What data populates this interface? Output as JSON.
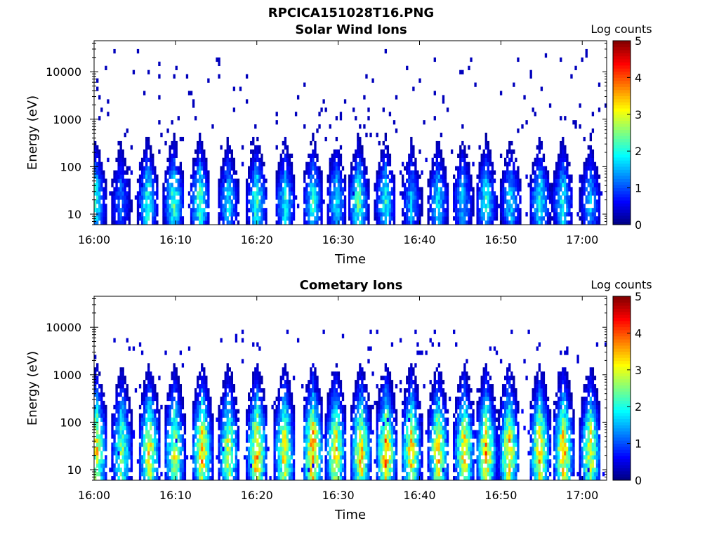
{
  "figure_title": "RPCICA151028T16.PNG",
  "colors": {
    "colormap": [
      "#00007f",
      "#0000ff",
      "#007fff",
      "#00ffff",
      "#7fff7f",
      "#ffff00",
      "#ff7f00",
      "#ff0000",
      "#7f0000"
    ]
  },
  "chart_data": [
    {
      "type": "heatmap",
      "title": "Solar Wind Ions",
      "xlabel": "Time",
      "ylabel": "Energy (eV)",
      "y_scale": "log",
      "ylim": [
        6,
        45000
      ],
      "xlim": [
        "16:00",
        "17:03"
      ],
      "x_ticks": [
        "16:00",
        "16:10",
        "16:20",
        "16:30",
        "16:40",
        "16:50",
        "17:00"
      ],
      "y_ticks": [
        "10",
        "100",
        "1000",
        "10000"
      ],
      "colorbar": {
        "label": "Log counts",
        "range": [
          0,
          5
        ],
        "ticks": [
          "0",
          "1",
          "2",
          "3",
          "4",
          "5"
        ]
      },
      "sweep_minutes": [
        0.2,
        3.3,
        6.6,
        9.8,
        13.0,
        16.5,
        20.0,
        23.5,
        26.9,
        29.8,
        32.5,
        35.8,
        39.0,
        42.3,
        45.3,
        48.2,
        51.2,
        54.8,
        57.6,
        61.0
      ],
      "peak_log_counts": [
        2.0,
        1.2,
        2.1,
        2.2,
        2.3,
        1.8,
        2.2,
        1.9,
        2.0,
        1.8,
        2.3,
        2.0,
        1.5,
        1.8,
        1.6,
        2.0,
        1.7,
        2.0,
        1.9,
        1.6
      ],
      "background_log_counts": 0.3,
      "background_energy_range": [
        150,
        28000
      ]
    },
    {
      "type": "heatmap",
      "title": "Cometary Ions",
      "xlabel": "Time",
      "ylabel": "Energy (eV)",
      "y_scale": "log",
      "ylim": [
        6,
        45000
      ],
      "xlim": [
        "16:00",
        "17:03"
      ],
      "x_ticks": [
        "16:00",
        "16:10",
        "16:20",
        "16:30",
        "16:40",
        "16:50",
        "17:00"
      ],
      "y_ticks": [
        "10",
        "100",
        "1000",
        "10000"
      ],
      "colorbar": {
        "label": "Log counts",
        "range": [
          0,
          5
        ],
        "ticks": [
          "0",
          "1",
          "2",
          "3",
          "4",
          "5"
        ]
      },
      "sweep_minutes": [
        0.3,
        3.4,
        6.8,
        9.9,
        13.3,
        16.5,
        20.0,
        23.4,
        26.9,
        29.7,
        32.8,
        35.9,
        39.0,
        42.3,
        45.5,
        48.2,
        51.0,
        54.8,
        57.7,
        61.0
      ],
      "peak_log_counts": [
        3.2,
        2.6,
        3.3,
        3.0,
        3.5,
        3.0,
        3.6,
        3.2,
        3.8,
        3.3,
        3.4,
        3.7,
        3.4,
        3.4,
        3.3,
        3.6,
        3.4,
        3.5,
        3.6,
        3.2
      ],
      "background_log_counts": 0.4,
      "background_energy_range": [
        200,
        9500
      ]
    }
  ]
}
